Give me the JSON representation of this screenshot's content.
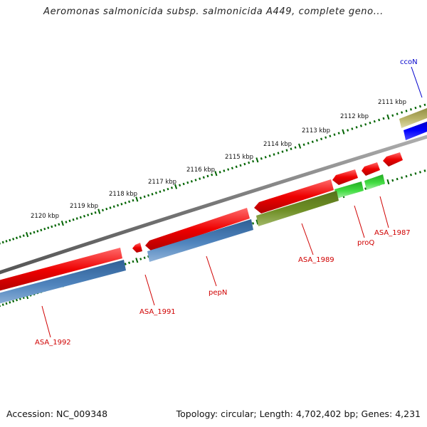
{
  "title": "Aeromonas salmonicida subsp. salmonicida A449, complete geno...",
  "footer": {
    "accession": "Accession: NC_009348",
    "summary": "Topology: circular; Length: 4,702,402 bp; Genes: 4,231"
  },
  "chart_data": {
    "type": "genome-map",
    "ruler": {
      "unit": "kbp",
      "ticks": [
        "2111 kbp",
        "2112 kbp",
        "2113 kbp",
        "2114 kbp",
        "2115 kbp",
        "2116 kbp",
        "2117 kbp",
        "2118 kbp",
        "2119 kbp",
        "2120 kbp"
      ]
    },
    "genes": [
      {
        "label": "ccoN",
        "color": "#0000cc"
      },
      {
        "label": "ASA_1987",
        "color": "#d00000"
      },
      {
        "label": "proQ",
        "color": "#d00000"
      },
      {
        "label": "ASA_1989",
        "color": "#d00000"
      },
      {
        "label": "pepN",
        "color": "#d00000"
      },
      {
        "label": "ASA_1991",
        "color": "#d00000"
      },
      {
        "label": "ASA_1992",
        "color": "#d00000"
      }
    ],
    "colors": {
      "cds": "#e00000",
      "backbone": "#777777",
      "ruler": "#006400",
      "feature_blue": "#3f72a8",
      "feature_olive": "#6b8a22",
      "feature_green": "#33cc33",
      "feature_khaki": "#b5b060",
      "feature_navy": "#0000ee"
    }
  }
}
